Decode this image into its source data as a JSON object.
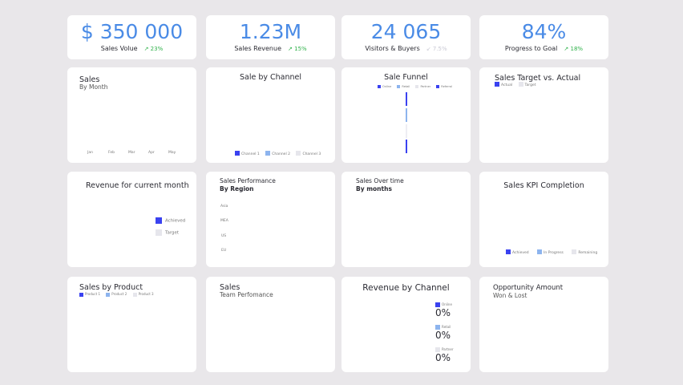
{
  "colors": {
    "accent": "#4a8be6",
    "primary": "#3a42f0",
    "secondary": "#8db4ee",
    "light": "#e6e6ec",
    "up": "#2fb24a"
  },
  "kpis": [
    {
      "value": "$ 350 000",
      "label": "Sales Volue",
      "trend": "23%",
      "trend_icon": "arrow-up-right-icon"
    },
    {
      "value": "1.23M",
      "label": "Sales Revenue",
      "trend": "15%",
      "trend_icon": "arrow-up-right-icon"
    },
    {
      "value": "24 065",
      "label": "Visitors & Buyers",
      "trend": "7.5%",
      "trend_icon": "arrow-down-left-icon"
    },
    {
      "value": "84%",
      "label": "Progress to Goal",
      "trend": "18%",
      "trend_icon": "arrow-up-right-icon"
    }
  ],
  "sales_month": {
    "title": "Sales",
    "subtitle": "By Month",
    "months": [
      "Jan",
      "Feb",
      "Mar",
      "Apr",
      "May"
    ]
  },
  "sale_channel": {
    "title": "Sale by Channel",
    "legend": [
      "Channel 1",
      "Channel 2",
      "Channel 3"
    ]
  },
  "funnel": {
    "title": "Sale Funnel",
    "legend": [
      "Online",
      "Retail",
      "Partner",
      "Referral"
    ]
  },
  "target_actual": {
    "title": "Sales Target vs. Actual",
    "legend": [
      "Actual",
      "Target"
    ]
  },
  "revenue_month": {
    "title": "Revenue for current month",
    "legend": [
      "Achieved",
      "Target"
    ]
  },
  "region": {
    "title": "Sales Performance",
    "subtitle": "By Region",
    "regions": [
      "Asia",
      "MEA",
      "US",
      "EU"
    ]
  },
  "over_time": {
    "title": "Sales Over time",
    "subtitle": "By months"
  },
  "kpi_completion": {
    "title": "Sales KPI Completion",
    "legend": [
      "Achieved",
      "In Progress",
      "Remaining"
    ]
  },
  "by_product": {
    "title": "Sales by Product",
    "legend": [
      "Product 1",
      "Product 2",
      "Product 3"
    ]
  },
  "team": {
    "title": "Sales",
    "subtitle": "Team Perfomance"
  },
  "rev_channel": {
    "title": "Revenue by Channel",
    "items": [
      {
        "label": "Online",
        "value": "0%"
      },
      {
        "label": "Retail",
        "value": "0%"
      },
      {
        "label": "Partner",
        "value": "0%"
      }
    ]
  },
  "opportunity": {
    "title": "Opportunity Amount",
    "subtitle": "Won & Lost"
  }
}
